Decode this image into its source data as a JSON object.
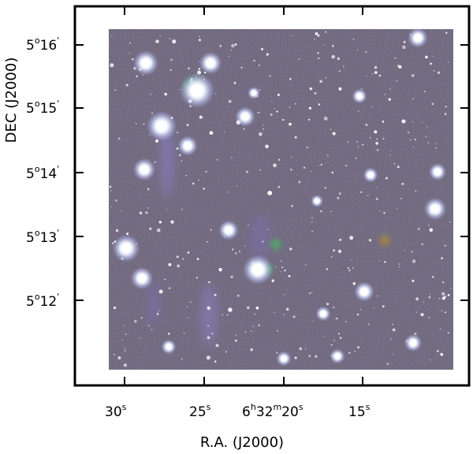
{
  "figure": {
    "xlabel": "R.A. (J2000)",
    "ylabel": "DEC (J2000)",
    "x_ticks": [
      {
        "main": "30",
        "sup": "s"
      },
      {
        "main": "25",
        "sup": "s"
      },
      {
        "pre": "6",
        "pre_sup": "h",
        "mid": "32",
        "mid_sup": "m",
        "main": "20",
        "sup": "s"
      },
      {
        "main": "15",
        "sup": "s"
      }
    ],
    "y_ticks": [
      {
        "deg": "5",
        "deg_sup": "o",
        "min": "16",
        "min_sup": "'"
      },
      {
        "deg": "5",
        "deg_sup": "o",
        "min": "15",
        "min_sup": "'"
      },
      {
        "deg": "5",
        "deg_sup": "o",
        "min": "14",
        "min_sup": "'"
      },
      {
        "deg": "5",
        "deg_sup": "o",
        "min": "13",
        "min_sup": "'"
      },
      {
        "deg": "5",
        "deg_sup": "o",
        "min": "12",
        "min_sup": "'"
      }
    ],
    "colors": {
      "sky_background": "#4e4b5c",
      "frame": "#000000",
      "star": "#ffffff",
      "star_halo": "#c9d6ff",
      "nebula": "#7a6fb0",
      "green_glow": "#3fbf5a"
    }
  }
}
